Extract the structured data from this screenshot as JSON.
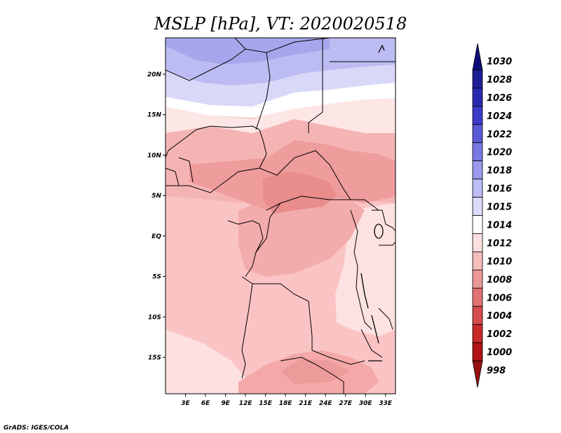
{
  "title": "MSLP [hPa], VT: 2020020518",
  "credit": "GrADS: IGES/COLA",
  "map": {
    "lat_labels": [
      "20N",
      "15N",
      "10N",
      "5N",
      "EQ",
      "5S",
      "10S",
      "15S"
    ],
    "lat_values": [
      20,
      15,
      10,
      5,
      0,
      -5,
      -10,
      -15
    ],
    "lon_labels": [
      "3E",
      "6E",
      "9E",
      "12E",
      "15E",
      "18E",
      "21E",
      "24E",
      "27E",
      "30E",
      "33E"
    ],
    "lon_values": [
      3,
      6,
      9,
      12,
      15,
      18,
      21,
      24,
      27,
      30,
      33
    ],
    "lon_range": [
      0,
      34.5
    ],
    "lat_range": [
      -19.5,
      24.5
    ],
    "regions_hpa": {
      "north_high": 1018,
      "north_mid": 1016,
      "sahel_band": 1014,
      "west_low": 1012,
      "central_low": 1010,
      "chad_car_low": 1008,
      "angola_south": 1012,
      "east_plateau": 1014
    }
  },
  "legend": {
    "levels": [
      "1030",
      "1028",
      "1026",
      "1024",
      "1022",
      "1020",
      "1018",
      "1016",
      "1015",
      "1014",
      "1012",
      "1010",
      "1008",
      "1006",
      "1004",
      "1002",
      "1000",
      "998"
    ],
    "colors": [
      "#0e0e78",
      "#1e1e96",
      "#2a2ab0",
      "#3c3cc8",
      "#5a5ad6",
      "#7878e2",
      "#9a9aee",
      "#bcbcf6",
      "#dcdcfa",
      "#ffffff",
      "#fbe0e0",
      "#f5bcbc",
      "#ec9898",
      "#e27272",
      "#d64c4c",
      "#c82a2a",
      "#b01414",
      "#961010"
    ]
  }
}
